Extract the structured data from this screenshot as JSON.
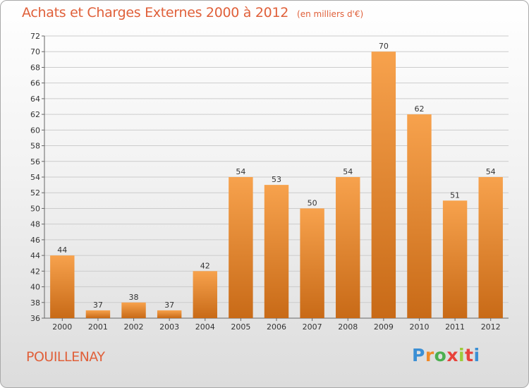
{
  "header": {
    "title": "Achats et Charges Externes 2000 à 2012",
    "subtitle": "(en milliers d'€)"
  },
  "footer": {
    "commune": "POUILLENAY",
    "logo_text": "Proxiti"
  },
  "colors": {
    "accent": "#e0603a",
    "bar_top": "#f7a24d",
    "bar_bottom": "#c86a17",
    "grid": "#cccccc"
  },
  "chart_data": {
    "type": "bar",
    "title": "Achats et Charges Externes 2000 à 2012",
    "subtitle": "(en milliers d'€)",
    "xlabel": "",
    "ylabel": "",
    "categories": [
      "2000",
      "2001",
      "2002",
      "2003",
      "2004",
      "2005",
      "2006",
      "2007",
      "2008",
      "2009",
      "2010",
      "2011",
      "2012"
    ],
    "values": [
      44,
      37,
      38,
      37,
      42,
      54,
      53,
      50,
      54,
      70,
      62,
      51,
      54
    ],
    "ylim": [
      36,
      72
    ],
    "yticks": [
      36,
      38,
      40,
      42,
      44,
      46,
      48,
      50,
      52,
      54,
      56,
      58,
      60,
      62,
      64,
      66,
      68,
      70,
      72
    ],
    "grid": true,
    "legend": "none"
  }
}
